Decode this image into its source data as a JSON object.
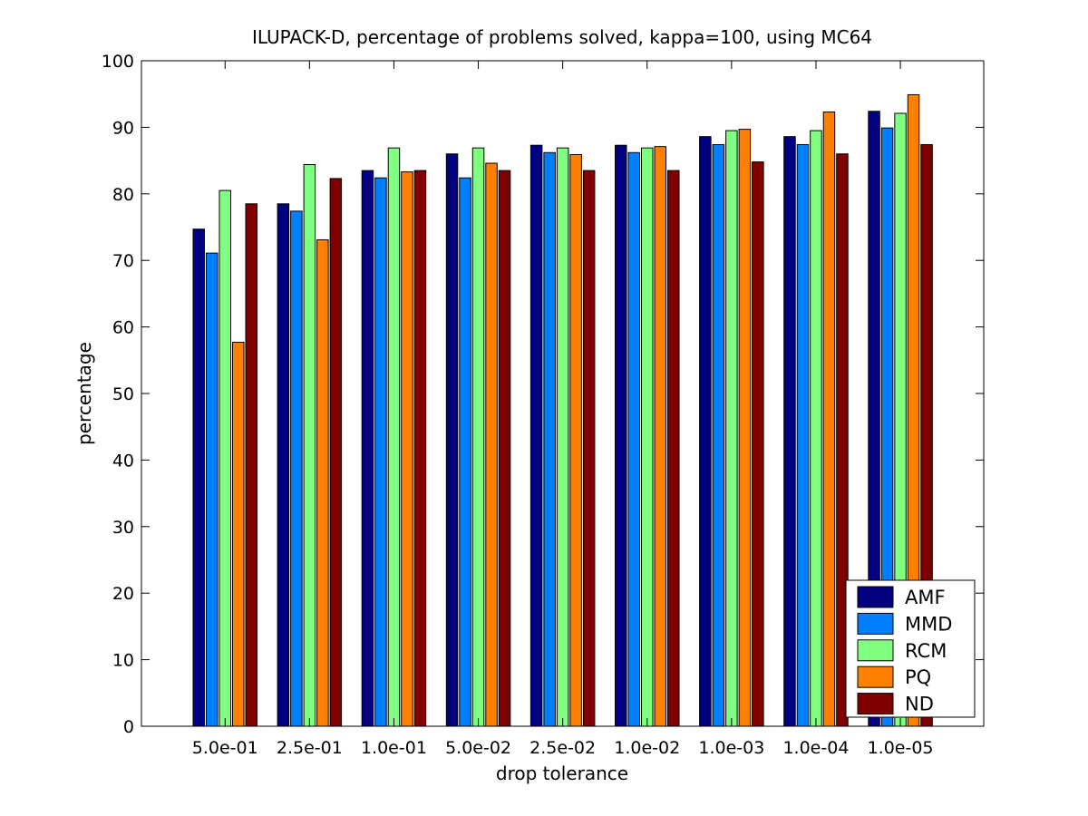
{
  "chart_data": {
    "type": "bar",
    "title": "ILUPACK-D, percentage of problems solved, kappa=100, using MC64",
    "xlabel": "drop tolerance",
    "ylabel": "percentage",
    "ylim": [
      0,
      100
    ],
    "yticks": [
      0,
      10,
      20,
      30,
      40,
      50,
      60,
      70,
      80,
      90,
      100
    ],
    "categories": [
      "5.0e-01",
      "2.5e-01",
      "1.0e-01",
      "5.0e-02",
      "2.5e-02",
      "1.0e-02",
      "1.0e-03",
      "1.0e-04",
      "1.0e-05"
    ],
    "series": [
      {
        "name": "AMF",
        "color": "#000080",
        "values": [
          74.7,
          78.5,
          83.5,
          86.0,
          87.3,
          87.3,
          88.6,
          88.6,
          92.4
        ]
      },
      {
        "name": "MMD",
        "color": "#0080ff",
        "values": [
          71.1,
          77.4,
          82.4,
          82.4,
          86.2,
          86.2,
          87.4,
          87.4,
          89.9
        ]
      },
      {
        "name": "RCM",
        "color": "#80ff80",
        "values": [
          80.5,
          84.4,
          86.9,
          86.9,
          86.9,
          86.9,
          89.5,
          89.5,
          92.1
        ]
      },
      {
        "name": "PQ",
        "color": "#ff8000",
        "values": [
          57.7,
          73.1,
          83.3,
          84.6,
          85.9,
          87.1,
          89.7,
          92.3,
          94.9
        ]
      },
      {
        "name": "ND",
        "color": "#800000",
        "values": [
          78.5,
          82.3,
          83.5,
          83.5,
          83.5,
          83.5,
          84.8,
          86.0,
          87.4
        ]
      }
    ],
    "grid": false,
    "legend_position": "bottom-right"
  }
}
